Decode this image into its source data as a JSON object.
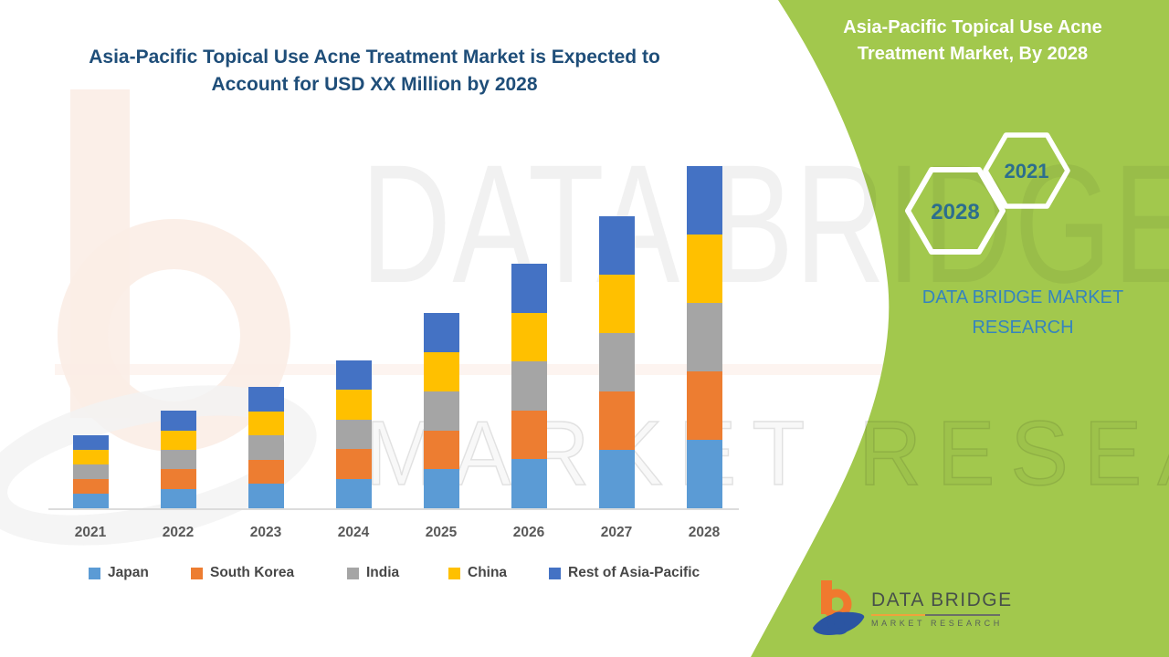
{
  "header": {
    "left_title_line1": "Asia-Pacific Topical Use Acne Treatment Market is Expected to",
    "left_title_line2": "Account for USD XX Million by 2028",
    "right_title_line1": "Asia-Pacific Topical Use Acne",
    "right_title_line2": "Treatment Market, By 2028"
  },
  "side_panel": {
    "hexagon_top_label": "2021",
    "hexagon_bottom_label": "2028",
    "brand_line1": "DATA BRIDGE MARKET",
    "brand_line2": "RESEARCH",
    "accent_green": "#A2C84D",
    "hexagon_text_color": "#2C6E8E",
    "brand_text_color": "#3584BE"
  },
  "logo": {
    "name": "DATA BRIDGE",
    "subtitle": "MARKET RESEARCH",
    "orange": "#F0792E",
    "blue": "#2B55A2"
  },
  "watermark": {
    "line1": "DATA BRIDGE",
    "line2": "MARKET RESEARCH"
  },
  "title_color": "#1F4E79",
  "chart_data": {
    "type": "bar",
    "stacked": true,
    "title": "Asia-Pacific Topical Use Acne Treatment Market is Expected to Account for USD XX Million by 2028",
    "xlabel": "",
    "ylabel": "",
    "categories": [
      "2021",
      "2022",
      "2023",
      "2024",
      "2025",
      "2026",
      "2027",
      "2028"
    ],
    "series": [
      {
        "name": "Japan",
        "color": "#5B9BD5",
        "values": [
          0.85,
          1.14,
          1.42,
          1.73,
          2.28,
          2.86,
          3.41,
          4.0
        ]
      },
      {
        "name": "South Korea",
        "color": "#ED7D31",
        "values": [
          0.85,
          1.14,
          1.42,
          1.73,
          2.28,
          2.86,
          3.41,
          4.0
        ]
      },
      {
        "name": "India",
        "color": "#A5A5A5",
        "values": [
          0.85,
          1.14,
          1.42,
          1.73,
          2.28,
          2.86,
          3.41,
          4.0
        ]
      },
      {
        "name": "China",
        "color": "#FFC000",
        "values": [
          0.85,
          1.14,
          1.42,
          1.73,
          2.28,
          2.86,
          3.41,
          4.0
        ]
      },
      {
        "name": "Rest of Asia-Pacific",
        "color": "#4472C4",
        "values": [
          0.85,
          1.14,
          1.42,
          1.73,
          2.28,
          2.86,
          3.41,
          4.0
        ]
      }
    ],
    "stack_totals_estimated": [
      4.27,
      5.71,
      7.09,
      8.64,
      11.41,
      14.29,
      17.07,
      20.0
    ],
    "ylim": [
      0,
      20
    ],
    "grid": false,
    "legend_position": "bottom",
    "y_axis_shown": false
  }
}
